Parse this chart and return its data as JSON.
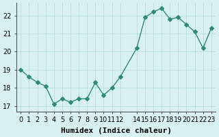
{
  "xlabel": "Humidex (Indice chaleur)",
  "x": [
    0,
    1,
    2,
    3,
    4,
    5,
    6,
    7,
    8,
    9,
    10,
    11,
    12,
    14,
    15,
    16,
    17,
    18,
    19,
    20,
    21,
    22,
    23
  ],
  "y": [
    19.0,
    18.6,
    18.3,
    18.1,
    17.1,
    17.4,
    17.2,
    17.4,
    17.4,
    18.3,
    17.6,
    18.0,
    18.6,
    20.2,
    21.9,
    22.2,
    22.4,
    21.8,
    21.9,
    21.5,
    21.1,
    20.2,
    21.3
  ],
  "line_color": "#2e8b77",
  "marker": "D",
  "marker_size": 3,
  "background_color": "#d9f0f0",
  "grid_color": "#b0d8d8",
  "ylim": [
    16.7,
    22.7
  ],
  "xlim": [
    -0.5,
    23.5
  ],
  "yticks": [
    17,
    18,
    19,
    20,
    21,
    22
  ],
  "xtick_positions": [
    0,
    1,
    2,
    3,
    4,
    5,
    6,
    7,
    8,
    9,
    10,
    11,
    12,
    14,
    15,
    16,
    17,
    18,
    19,
    20,
    21,
    22,
    23
  ],
  "xtick_labels": [
    "0",
    "1",
    "2",
    "3",
    "4",
    "5",
    "6",
    "7",
    "8",
    "9",
    "10",
    "11",
    "12",
    "14",
    "15",
    "16",
    "17",
    "18",
    "19",
    "20",
    "21",
    "22",
    "23"
  ],
  "tick_fontsize": 7,
  "label_fontsize": 8
}
